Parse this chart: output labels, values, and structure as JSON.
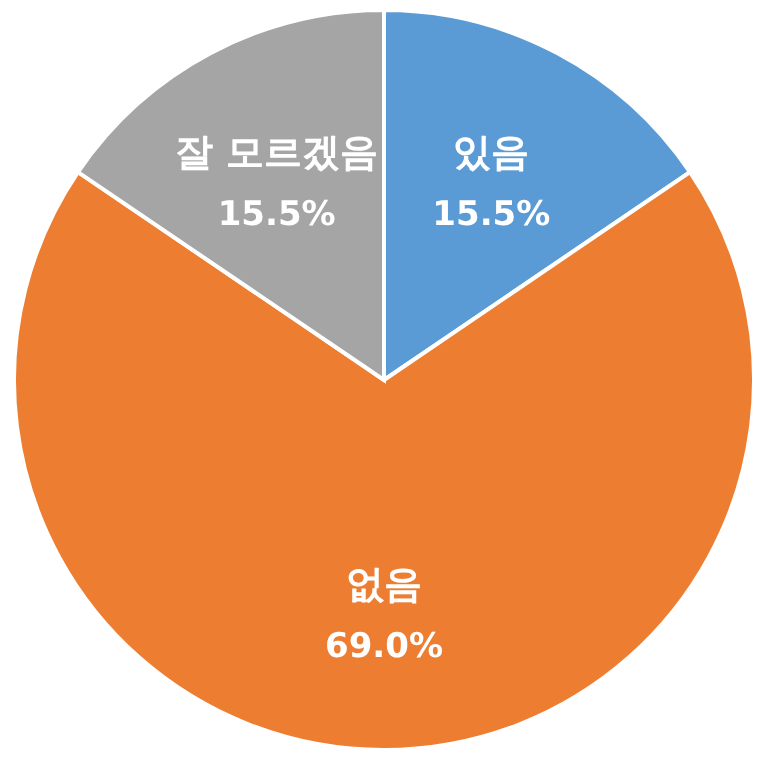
{
  "chart_data": {
    "type": "pie",
    "categories": [
      "있음",
      "없음",
      "잘 모르겠음"
    ],
    "values": [
      15.5,
      69.0,
      15.5
    ],
    "colors": [
      "#5b9bd5",
      "#ed7d31",
      "#a5a5a5"
    ],
    "value_labels": [
      "15.5%",
      "69.0%",
      "15.5%"
    ],
    "legend": false
  }
}
